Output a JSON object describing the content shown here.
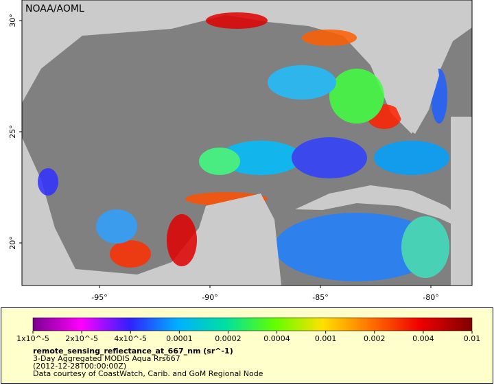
{
  "map": {
    "credit": "NOAA/AOML",
    "lat_labels": [
      "30°",
      "25°",
      "20°"
    ],
    "lon_labels": [
      "-95°",
      "-90°",
      "-85°",
      "-80°"
    ],
    "colorbar_labels": [
      "1x10^-5",
      "2x10^-5",
      "4x10^-5",
      "0.0001",
      "0.0002",
      "0.0004",
      "0.001",
      "0.002",
      "0.004",
      "0.01"
    ],
    "variable": "remote_sensing_reflectance_at_667_nm (sr^-1)",
    "caption": [
      "3-Day Aggregated MODIS Aqua Rrs667",
      "(2012-12-28T00:00:00Z)",
      "Data courtesy of CoastWatch, Carib. and GoM Regional Node"
    ]
  }
}
